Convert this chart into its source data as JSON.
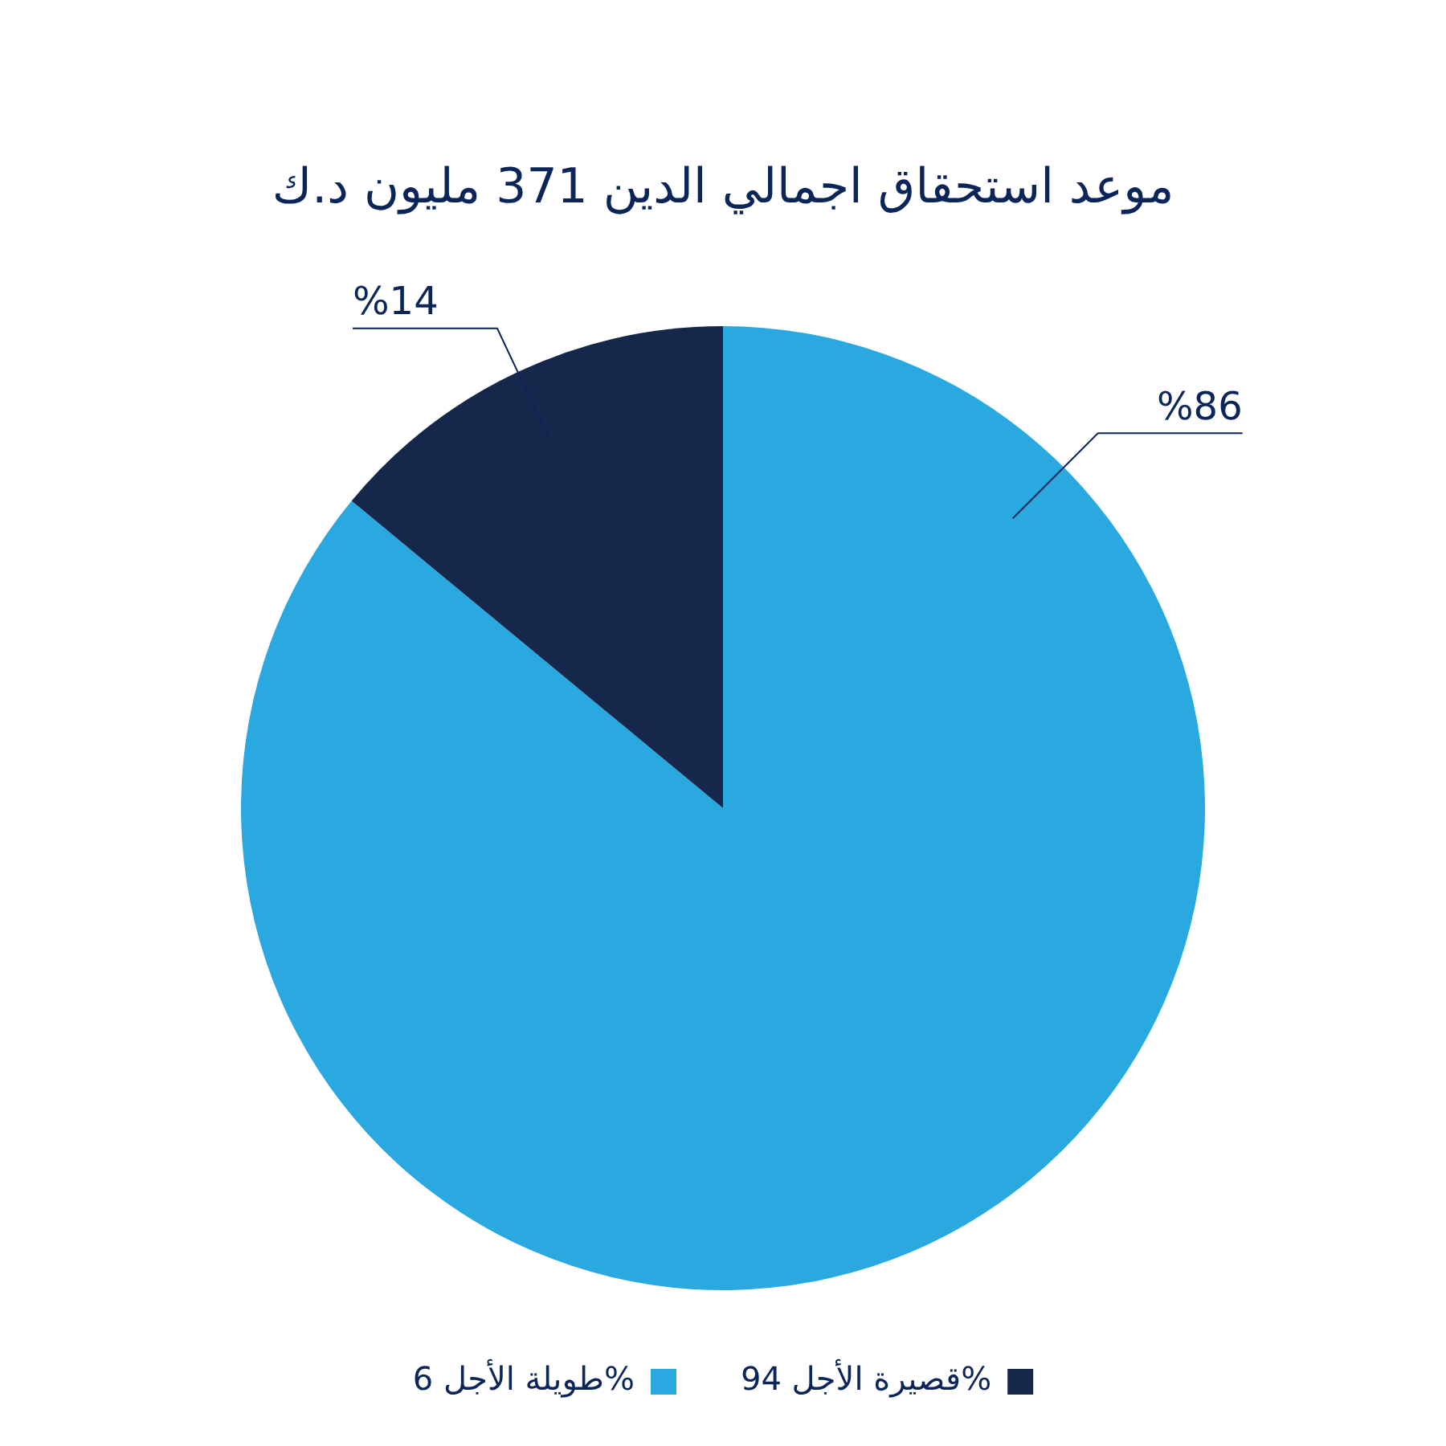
{
  "chart_data": {
    "type": "pie",
    "title": "موعد استحقاق اجمالي الدين 371 مليون د.ك",
    "categories": [
      "طويلة الأجل 6%",
      "قصيرة الأجل 94%"
    ],
    "values": [
      86,
      14
    ],
    "colors": [
      "#2aa8e0",
      "#15284b"
    ],
    "value_labels": [
      "%86",
      "%14"
    ],
    "legend": "bottom"
  }
}
